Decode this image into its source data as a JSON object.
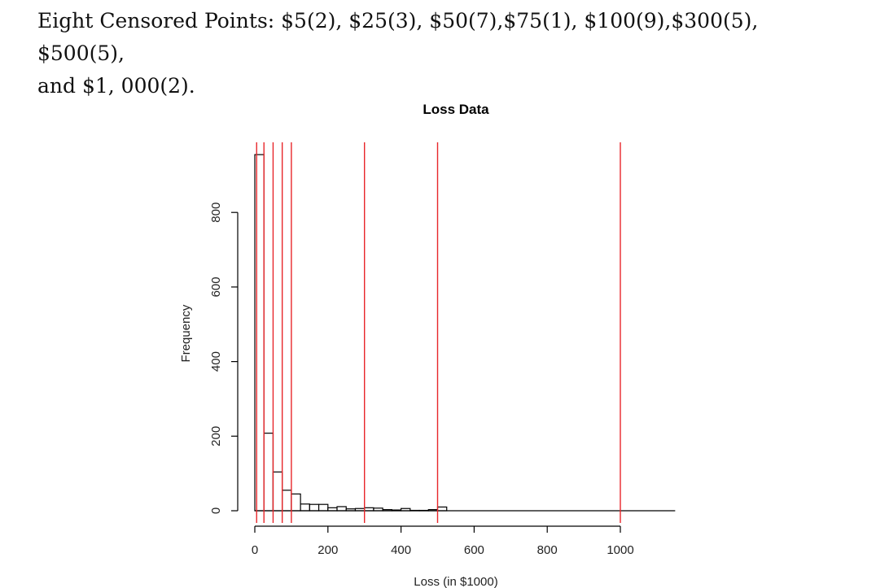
{
  "caption": {
    "line1": "Eight Censored Points: $5(2), $25(3), $50(7),$75(1), $100(9),$300(5), $500(5),",
    "line2": "and $1, 000(2)."
  },
  "chart_data": {
    "type": "bar",
    "title": "Loss Data",
    "xlabel": "Loss (in $1000)",
    "ylabel": "Frequency",
    "xlim": [
      0,
      1150
    ],
    "ylim": [
      0,
      960
    ],
    "xticks": [
      0,
      200,
      400,
      600,
      800,
      1000
    ],
    "yticks": [
      0,
      200,
      400,
      600,
      800
    ],
    "bin_width": 25,
    "bins": [
      {
        "x0": 0,
        "x1": 25,
        "count": 955
      },
      {
        "x0": 25,
        "x1": 50,
        "count": 208
      },
      {
        "x0": 50,
        "x1": 75,
        "count": 104
      },
      {
        "x0": 75,
        "x1": 100,
        "count": 55
      },
      {
        "x0": 100,
        "x1": 125,
        "count": 45
      },
      {
        "x0": 125,
        "x1": 150,
        "count": 18
      },
      {
        "x0": 150,
        "x1": 175,
        "count": 17
      },
      {
        "x0": 175,
        "x1": 200,
        "count": 17
      },
      {
        "x0": 200,
        "x1": 225,
        "count": 8
      },
      {
        "x0": 225,
        "x1": 250,
        "count": 11
      },
      {
        "x0": 250,
        "x1": 275,
        "count": 5
      },
      {
        "x0": 275,
        "x1": 300,
        "count": 6
      },
      {
        "x0": 300,
        "x1": 325,
        "count": 8
      },
      {
        "x0": 325,
        "x1": 350,
        "count": 7
      },
      {
        "x0": 350,
        "x1": 375,
        "count": 3
      },
      {
        "x0": 375,
        "x1": 400,
        "count": 2
      },
      {
        "x0": 400,
        "x1": 425,
        "count": 6
      },
      {
        "x0": 425,
        "x1": 450,
        "count": 1
      },
      {
        "x0": 450,
        "x1": 475,
        "count": 1
      },
      {
        "x0": 475,
        "x1": 500,
        "count": 3
      },
      {
        "x0": 500,
        "x1": 525,
        "count": 10
      }
    ],
    "censored_points": [
      5,
      25,
      50,
      75,
      100,
      300,
      500,
      1000
    ],
    "censor_color": "#e8262a",
    "grid": false
  }
}
